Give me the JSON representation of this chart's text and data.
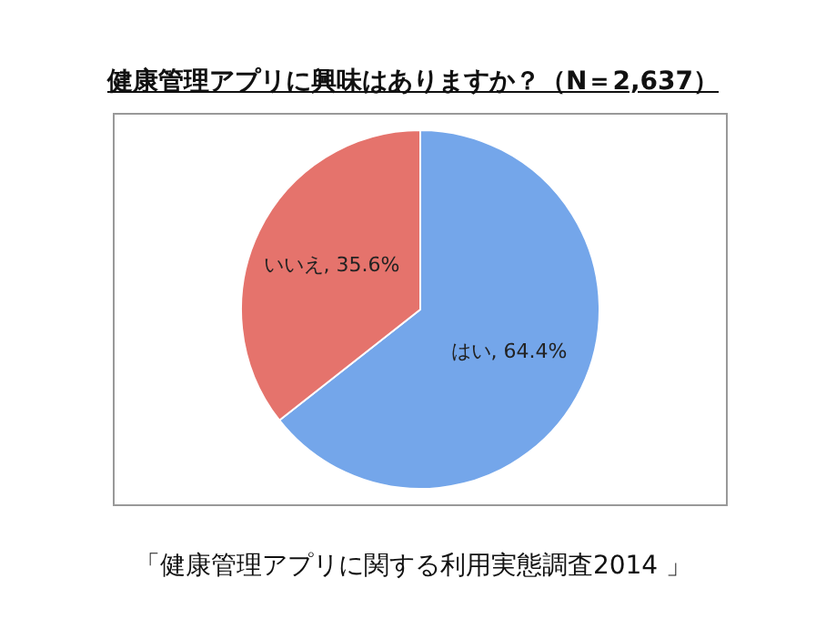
{
  "chart_data": {
    "type": "pie",
    "title": "健康管理アプリに興味はありますか？（N＝2,637）",
    "categories": [
      "はい",
      "いいえ"
    ],
    "values": [
      64.4,
      35.6
    ],
    "colors": [
      "#74a6ea",
      "#e5736c"
    ],
    "value_labels": [
      "64.4%",
      "35.6%"
    ],
    "legend": false,
    "annotations": [
      "「健康管理アプリに関する利用実態調査2014 」"
    ]
  }
}
